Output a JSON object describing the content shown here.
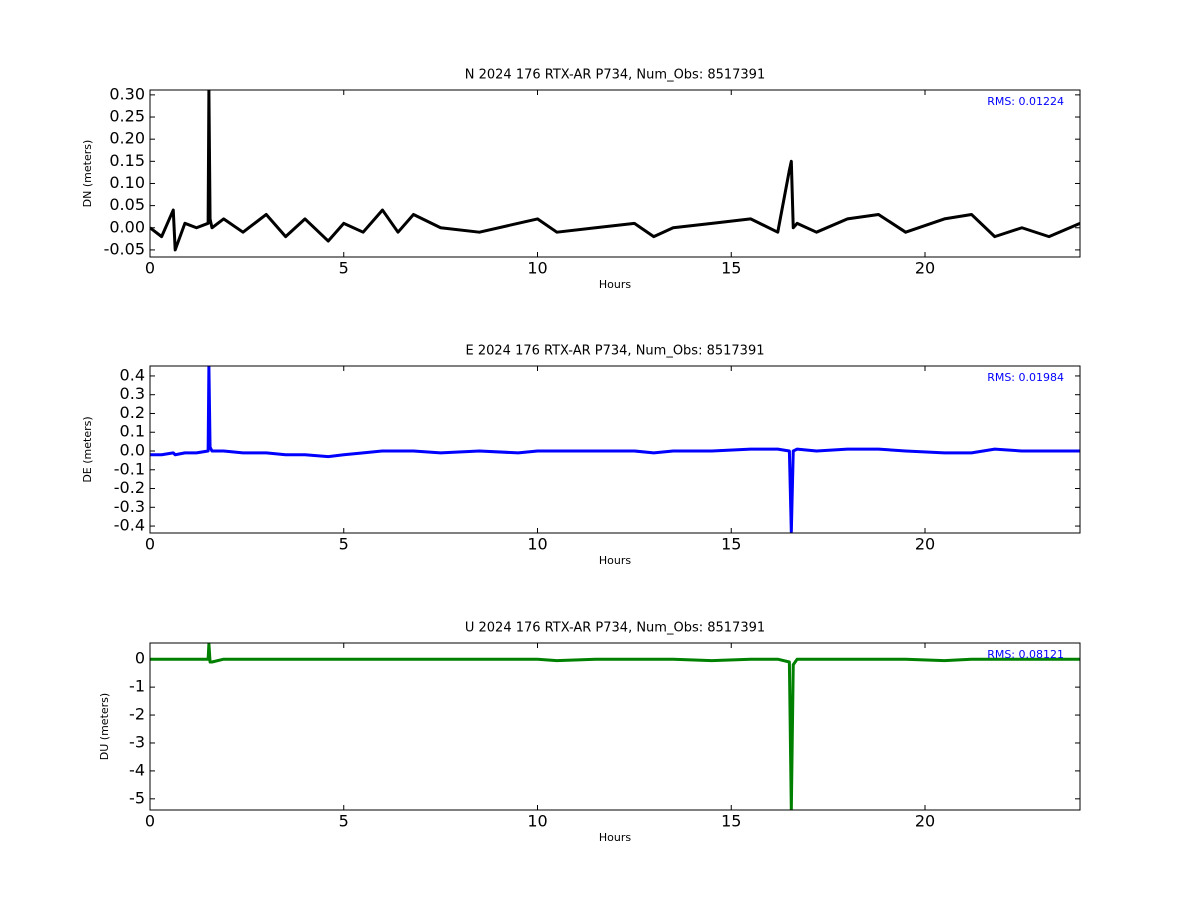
{
  "chart_data": [
    {
      "type": "line",
      "title": "N 2024 176 RTX-AR  P734, Num_Obs: 8517391",
      "x_label": "Hours",
      "y_label": "DN (meters)",
      "annotation": "RMS:  0.01224",
      "annotation_color": "#0000ff",
      "x": [
        0,
        0.3,
        0.6,
        0.65,
        0.9,
        1.2,
        1.5,
        1.52,
        1.55,
        1.6,
        1.9,
        2.4,
        3.0,
        3.5,
        4.0,
        4.6,
        5.0,
        5.5,
        6.0,
        6.4,
        6.8,
        7.5,
        8.5,
        9.5,
        10.0,
        10.5,
        11.5,
        12.5,
        13.0,
        13.5,
        14.5,
        15.5,
        16.2,
        16.5,
        16.55,
        16.6,
        16.7,
        17.2,
        18.0,
        18.8,
        19.5,
        20.5,
        21.2,
        21.8,
        22.5,
        23.2,
        24
      ],
      "series": [
        {
          "color": "#000000",
          "values": [
            0,
            -0.02,
            0.04,
            -0.05,
            0.01,
            0.0,
            0.01,
            0.31,
            0.02,
            0.0,
            0.02,
            -0.01,
            0.03,
            -0.02,
            0.02,
            -0.03,
            0.01,
            -0.01,
            0.04,
            -0.01,
            0.03,
            0.0,
            -0.01,
            0.01,
            0.02,
            -0.01,
            0.0,
            0.01,
            -0.02,
            0.0,
            0.01,
            0.02,
            -0.01,
            0.13,
            0.15,
            0.0,
            0.01,
            -0.01,
            0.02,
            0.03,
            -0.01,
            0.02,
            0.03,
            -0.02,
            0.0,
            -0.02,
            0.01
          ]
        }
      ],
      "xlim": [
        0,
        24
      ],
      "xticks": [
        0,
        5,
        10,
        15,
        20
      ],
      "ylim": [
        -0.066,
        0.311
      ],
      "yticks": [
        -0.05,
        {
          "value": 0,
          "label": "0.00"
        },
        0.05,
        {
          "value": 0.1,
          "label": "0.10"
        },
        0.15,
        {
          "value": 0.2,
          "label": "0.20"
        },
        0.25,
        {
          "value": 0.3,
          "label": "0.30"
        }
      ]
    },
    {
      "type": "line",
      "title": "E 2024 176 RTX-AR  P734, Num_Obs: 8517391",
      "x_label": "Hours",
      "y_label": "DE (meters)",
      "annotation": "RMS:  0.01984",
      "annotation_color": "#0000ff",
      "x": [
        0,
        0.3,
        0.6,
        0.65,
        0.9,
        1.2,
        1.5,
        1.52,
        1.55,
        1.6,
        1.9,
        2.4,
        3.0,
        3.5,
        4.0,
        4.6,
        5.0,
        5.5,
        6.0,
        6.4,
        6.8,
        7.5,
        8.5,
        9.5,
        10.0,
        10.5,
        11.5,
        12.5,
        13.0,
        13.5,
        14.5,
        15.5,
        16.2,
        16.5,
        16.55,
        16.6,
        16.7,
        17.2,
        18.0,
        18.8,
        19.5,
        20.5,
        21.2,
        21.8,
        22.5,
        23.2,
        24
      ],
      "series": [
        {
          "color": "#0000ff",
          "values": [
            -0.02,
            -0.02,
            -0.01,
            -0.02,
            -0.01,
            -0.01,
            0.0,
            0.45,
            0.02,
            0.0,
            0.0,
            -0.01,
            -0.01,
            -0.02,
            -0.02,
            -0.03,
            -0.02,
            -0.01,
            0.0,
            0.0,
            0.0,
            -0.01,
            0.0,
            -0.01,
            0.0,
            0.0,
            0.0,
            0.0,
            -0.01,
            0.0,
            0.0,
            0.01,
            0.01,
            0.0,
            -0.43,
            0.0,
            0.01,
            0.0,
            0.01,
            0.01,
            0.0,
            -0.01,
            -0.01,
            0.01,
            0.0,
            0.0,
            0.0
          ]
        }
      ],
      "xlim": [
        0,
        24
      ],
      "xticks": [
        0,
        5,
        10,
        15,
        20
      ],
      "ylim": [
        -0.437,
        0.453
      ],
      "yticks": [
        -0.4,
        -0.3,
        -0.2,
        -0.1,
        {
          "value": 0,
          "label": "0.0"
        },
        0.1,
        0.2,
        0.3,
        0.4
      ]
    },
    {
      "type": "line",
      "title": "U 2024 176 RTX-AR  P734, Num_Obs: 8517391",
      "x_label": "Hours",
      "y_label": "DU (meters)",
      "annotation": "RMS:  0.08121",
      "annotation_color": "#0000ff",
      "x": [
        0,
        0.3,
        0.6,
        0.65,
        0.9,
        1.2,
        1.5,
        1.52,
        1.55,
        1.6,
        1.9,
        2.4,
        3.0,
        3.5,
        4.0,
        4.6,
        5.0,
        5.5,
        6.0,
        6.4,
        6.8,
        7.5,
        8.5,
        9.5,
        10.0,
        10.5,
        11.5,
        12.5,
        13.0,
        13.5,
        14.5,
        15.5,
        16.2,
        16.5,
        16.55,
        16.6,
        16.7,
        17.2,
        18.0,
        18.8,
        19.5,
        20.5,
        21.2,
        21.8,
        22.5,
        23.2,
        24
      ],
      "series": [
        {
          "color": "#008000",
          "values": [
            0.0,
            0.0,
            0.0,
            0.0,
            0.0,
            0.0,
            0.0,
            0.55,
            -0.1,
            -0.1,
            0.0,
            0.0,
            0.0,
            0.0,
            0.0,
            0.0,
            0.0,
            0.0,
            0.0,
            0.0,
            0.0,
            0.0,
            0.0,
            0.0,
            0.0,
            -0.05,
            0.0,
            0.0,
            0.0,
            0.0,
            -0.05,
            0.0,
            0.0,
            -0.1,
            -5.4,
            -0.2,
            0.0,
            0.0,
            0.0,
            0.0,
            0.0,
            -0.05,
            0.0,
            0.0,
            0.0,
            0.0,
            0.0
          ]
        }
      ],
      "xlim": [
        0,
        24
      ],
      "xticks": [
        0,
        5,
        10,
        15,
        20
      ],
      "ylim": [
        -5.4,
        0.58
      ],
      "yticks": [
        -5,
        -4,
        -3,
        -2,
        -1,
        0
      ]
    }
  ]
}
